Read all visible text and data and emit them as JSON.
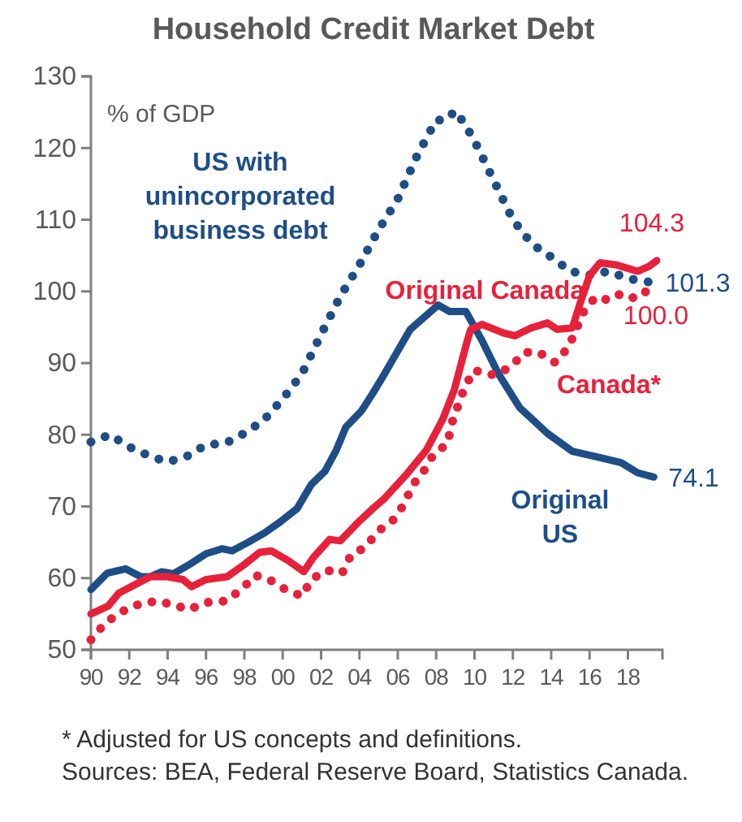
{
  "chart_data": {
    "type": "line",
    "title": "Household Credit Market Debt",
    "ylabel": "% of GDP",
    "xlim": [
      1990,
      2019.8
    ],
    "ylim": [
      50,
      130
    ],
    "xticks": [
      {
        "value": 1990,
        "label": "90"
      },
      {
        "value": 1992,
        "label": "92"
      },
      {
        "value": 1994,
        "label": "94"
      },
      {
        "value": 1996,
        "label": "96"
      },
      {
        "value": 1998,
        "label": "98"
      },
      {
        "value": 2000,
        "label": "00"
      },
      {
        "value": 2002,
        "label": "02"
      },
      {
        "value": 2004,
        "label": "04"
      },
      {
        "value": 2006,
        "label": "06"
      },
      {
        "value": 2008,
        "label": "08"
      },
      {
        "value": 2010,
        "label": "10"
      },
      {
        "value": 2012,
        "label": "12"
      },
      {
        "value": 2014,
        "label": "14"
      },
      {
        "value": 2016,
        "label": "16"
      },
      {
        "value": 2018,
        "label": "18"
      }
    ],
    "yticks": [
      50,
      60,
      70,
      80,
      90,
      100,
      110,
      120,
      130
    ],
    "grid": false,
    "series": [
      {
        "name": "US with unincorporated business debt",
        "color": "#1f4e87",
        "line_style": "dotted",
        "x": [
          1990,
          1991,
          1992,
          1993,
          1994,
          1995,
          1996,
          1997,
          1998,
          1999,
          2000,
          2001,
          2002,
          2003,
          2004,
          2005,
          2006,
          2007,
          2008,
          2008.5,
          2009,
          2009.5,
          2010,
          2011,
          2012,
          2013,
          2014,
          2015,
          2016,
          2017,
          2018,
          2019.1
        ],
        "values": [
          79.0,
          80.0,
          78.3,
          77.1,
          76.2,
          77.0,
          78.6,
          78.8,
          80.2,
          82.0,
          85.0,
          88.5,
          94.0,
          99.3,
          103.7,
          108.6,
          112.9,
          118.9,
          123.9,
          123.9,
          125.2,
          123.3,
          121.0,
          115.5,
          110.0,
          106.6,
          104.8,
          102.8,
          102.3,
          102.8,
          101.8,
          101.3
        ],
        "value_labels": [
          null,
          null,
          null,
          null,
          null,
          null,
          null,
          null,
          null,
          null,
          null,
          null,
          null,
          null,
          null,
          null,
          null,
          null,
          null,
          null,
          null,
          null,
          null,
          null,
          null,
          null,
          null,
          null,
          null,
          null,
          null,
          "101.3"
        ]
      },
      {
        "name": "Original US",
        "color": "#1f4e87",
        "line_style": "solid",
        "x": [
          1990,
          1990.85,
          1991.8,
          1992.6,
          1993.1,
          1993.7,
          1994.3,
          1995.2,
          1996,
          1996.85,
          1997.35,
          1998.2,
          1999.05,
          1999.9,
          2000.75,
          2001.5,
          2002.2,
          2002.8,
          2003.3,
          2004.1,
          2004.7,
          2005.2,
          2006.65,
          2008.1,
          2008.7,
          2009.55,
          2010.4,
          2011.25,
          2012.35,
          2013.8,
          2015.1,
          2016.55,
          2017.65,
          2018.5,
          2019.35
        ],
        "values": [
          58.4,
          60.7,
          61.3,
          60.2,
          60.2,
          60.9,
          60.6,
          62.0,
          63.4,
          64.1,
          63.8,
          65.0,
          66.3,
          67.9,
          69.7,
          73.1,
          74.9,
          77.9,
          81.1,
          83.3,
          85.8,
          88.0,
          94.7,
          98.1,
          97.2,
          97.2,
          93.1,
          88.5,
          83.8,
          80.2,
          77.7,
          76.8,
          76.1,
          74.7,
          74.1
        ],
        "value_labels": [
          null,
          null,
          null,
          null,
          null,
          null,
          null,
          null,
          null,
          null,
          null,
          null,
          null,
          null,
          null,
          null,
          null,
          null,
          null,
          null,
          null,
          null,
          null,
          null,
          null,
          null,
          null,
          null,
          null,
          null,
          null,
          null,
          null,
          null,
          "74.1"
        ]
      },
      {
        "name": "Canada*",
        "color": "#e8213a",
        "line_style": "dotted",
        "x": [
          1990,
          1990.7,
          1991.5,
          1992.45,
          1993.4,
          1994.3,
          1995.1,
          1996,
          1997,
          1997.85,
          1998.55,
          1999.3,
          2000.15,
          2001,
          2001.5,
          2002.25,
          2003.1,
          2003.55,
          2004.3,
          2005,
          2005.75,
          2006.35,
          2006.75,
          2007.35,
          2007.85,
          2008.6,
          2008.8,
          2009.4,
          2009.95,
          2011.05,
          2011.9,
          2012.6,
          2013.35,
          2014.2,
          2014.9,
          2015.7,
          2016.3,
          2017,
          2017.65,
          2018.4,
          2018.95
        ],
        "values": [
          51.4,
          53.6,
          55.2,
          56.3,
          56.8,
          56.3,
          55.6,
          56.6,
          56.8,
          58.4,
          60.4,
          59.8,
          58.4,
          57.5,
          59.8,
          61.1,
          60.7,
          63.2,
          64.3,
          66.6,
          68.1,
          70.4,
          72.9,
          74.9,
          77.2,
          78.8,
          81.5,
          86.0,
          89.0,
          88.3,
          89.5,
          91.5,
          91.5,
          90.1,
          92.2,
          97.2,
          99.2,
          98.8,
          99.7,
          99.0,
          100.0
        ],
        "value_labels": [
          null,
          null,
          null,
          null,
          null,
          null,
          null,
          null,
          null,
          null,
          null,
          null,
          null,
          null,
          null,
          null,
          null,
          null,
          null,
          null,
          null,
          null,
          null,
          null,
          null,
          null,
          null,
          null,
          null,
          null,
          null,
          null,
          null,
          null,
          null,
          null,
          null,
          null,
          null,
          null,
          "100.0"
        ]
      },
      {
        "name": "Original Canada",
        "color": "#e8213a",
        "line_style": "solid",
        "x": [
          1990,
          1990.9,
          1991.45,
          1992.3,
          1993.1,
          1994,
          1994.8,
          1995.25,
          1996,
          1997.1,
          1997.95,
          1998.8,
          1999.4,
          2000.25,
          2001.1,
          2001.6,
          2002.45,
          2003,
          2003.9,
          2004.7,
          2005.3,
          2006.4,
          2007.5,
          2008.35,
          2008.95,
          2009.55,
          2009.8,
          2010.4,
          2011.5,
          2012.1,
          2012.95,
          2013.8,
          2014.3,
          2015.1,
          2015.5,
          2016,
          2016.55,
          2017.4,
          2018.5,
          2019.1,
          2019.5
        ],
        "values": [
          55.0,
          56.1,
          57.9,
          59.1,
          60.2,
          60.2,
          59.8,
          58.8,
          59.8,
          60.2,
          61.8,
          63.6,
          63.8,
          62.5,
          60.9,
          62.9,
          65.4,
          65.2,
          67.7,
          69.7,
          71.1,
          74.3,
          77.9,
          82.2,
          86.3,
          92.4,
          94.7,
          95.4,
          94.2,
          93.8,
          94.9,
          95.6,
          94.7,
          94.9,
          98.3,
          102.2,
          104.0,
          103.7,
          102.8,
          103.5,
          104.3
        ],
        "value_labels": [
          null,
          null,
          null,
          null,
          null,
          null,
          null,
          null,
          null,
          null,
          null,
          null,
          null,
          null,
          null,
          null,
          null,
          null,
          null,
          null,
          null,
          null,
          null,
          null,
          null,
          null,
          null,
          null,
          null,
          null,
          null,
          null,
          null,
          null,
          null,
          null,
          null,
          null,
          null,
          null,
          "104.3"
        ]
      }
    ],
    "annotations": [
      "* Adjusted for US concepts and definitions.",
      "Sources: BEA, Federal Reserve Board, Statistics Canada."
    ]
  }
}
